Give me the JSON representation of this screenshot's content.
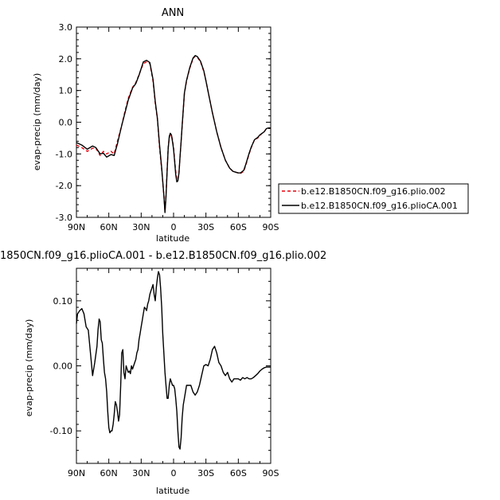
{
  "chart_data": [
    {
      "type": "line",
      "title": "ANN",
      "xlabel": "latitude",
      "ylabel": "evap-precip (mm/day)",
      "xlim": [
        90,
        -90
      ],
      "ylim": [
        -3.0,
        3.0
      ],
      "x_ticks": [
        90,
        60,
        30,
        0,
        -30,
        -60,
        -90
      ],
      "x_tick_labels": [
        "90N",
        "60N",
        "30N",
        "0",
        "30S",
        "60S",
        "90S"
      ],
      "y_ticks": [
        -3.0,
        -2.0,
        -1.0,
        0.0,
        1.0,
        2.0,
        3.0
      ],
      "y_tick_labels": [
        "-3.0",
        "-2.0",
        "-1.0",
        "0.0",
        "1.0",
        "2.0",
        "3.0"
      ],
      "legend_position": "right",
      "series": [
        {
          "name": "b.e12.B1850CN.f09_g16.plio.002",
          "color": "#e8000b",
          "dash": "dashed",
          "x": [
            90,
            85,
            80,
            75,
            72,
            68,
            65,
            62,
            58,
            55,
            52,
            48,
            45,
            42,
            38,
            35,
            32,
            28,
            25,
            22,
            19,
            17,
            15,
            13,
            11,
            9,
            8,
            7,
            6,
            5,
            4,
            3,
            2,
            1,
            0,
            -1,
            -2,
            -3,
            -4,
            -5,
            -6,
            -7,
            -8,
            -9,
            -10,
            -12,
            -15,
            -18,
            -20,
            -22,
            -25,
            -28,
            -30,
            -33,
            -36,
            -40,
            -44,
            -48,
            -52,
            -55,
            -58,
            -60,
            -62,
            -65,
            -67,
            -70,
            -72,
            -75,
            -78,
            -80,
            -82,
            -84,
            -86,
            -88,
            -90
          ],
          "y": [
            -0.72,
            -0.8,
            -0.92,
            -0.82,
            -0.82,
            -1.05,
            -0.92,
            -1.0,
            -0.92,
            -1.0,
            -0.6,
            -0.1,
            0.35,
            0.75,
            1.1,
            1.25,
            1.5,
            1.85,
            1.9,
            1.85,
            1.3,
            0.6,
            0.1,
            -0.8,
            -1.5,
            -2.3,
            -2.8,
            -2.3,
            -1.5,
            -0.8,
            -0.5,
            -0.4,
            -0.42,
            -0.55,
            -0.8,
            -1.2,
            -1.55,
            -1.8,
            -1.82,
            -1.6,
            -1.1,
            -0.6,
            -0.1,
            0.4,
            0.9,
            1.3,
            1.7,
            2.0,
            2.08,
            2.05,
            1.9,
            1.6,
            1.3,
            0.8,
            0.3,
            -0.3,
            -0.8,
            -1.2,
            -1.45,
            -1.55,
            -1.58,
            -1.6,
            -1.62,
            -1.55,
            -1.35,
            -1.0,
            -0.8,
            -0.55,
            -0.5,
            -0.42,
            -0.35,
            -0.3,
            -0.2,
            -0.18,
            -0.18
          ]
        },
        {
          "name": "b.e12.B1850CN.f09_g16.plioCA.001",
          "color": "#000000",
          "dash": "solid",
          "x": [
            90,
            85,
            80,
            75,
            72,
            68,
            65,
            62,
            58,
            55,
            52,
            48,
            45,
            42,
            38,
            35,
            32,
            28,
            25,
            22,
            19,
            17,
            15,
            13,
            11,
            9,
            8,
            7,
            6,
            5,
            4,
            3,
            2,
            1,
            0,
            -1,
            -2,
            -3,
            -4,
            -5,
            -6,
            -7,
            -8,
            -9,
            -10,
            -12,
            -15,
            -18,
            -20,
            -22,
            -25,
            -28,
            -30,
            -33,
            -36,
            -40,
            -44,
            -48,
            -52,
            -55,
            -58,
            -60,
            -62,
            -65,
            -67,
            -70,
            -72,
            -75,
            -78,
            -80,
            -82,
            -84,
            -86,
            -88,
            -90
          ],
          "y": [
            -0.64,
            -0.72,
            -0.85,
            -0.75,
            -0.8,
            -1.0,
            -0.98,
            -1.1,
            -1.02,
            -1.05,
            -0.68,
            -0.1,
            0.3,
            0.7,
            1.08,
            1.22,
            1.48,
            1.9,
            1.95,
            1.88,
            1.35,
            0.65,
            0.12,
            -0.72,
            -1.45,
            -2.3,
            -2.85,
            -2.35,
            -1.55,
            -0.85,
            -0.45,
            -0.35,
            -0.4,
            -0.6,
            -0.85,
            -1.25,
            -1.65,
            -1.88,
            -1.85,
            -1.6,
            -1.1,
            -0.6,
            -0.1,
            0.4,
            0.92,
            1.32,
            1.72,
            2.02,
            2.1,
            2.07,
            1.92,
            1.62,
            1.3,
            0.8,
            0.3,
            -0.3,
            -0.8,
            -1.2,
            -1.45,
            -1.55,
            -1.58,
            -1.6,
            -1.6,
            -1.52,
            -1.32,
            -0.98,
            -0.78,
            -0.55,
            -0.48,
            -0.4,
            -0.35,
            -0.3,
            -0.2,
            -0.18,
            -0.18
          ]
        }
      ]
    },
    {
      "type": "line",
      "title": "1850CN.f09_g16.plioCA.001 - b.e12.B1850CN.f09_g16.plio.002",
      "xlabel": "latitude",
      "ylabel": "evap-precip (mm/day)",
      "xlim": [
        90,
        -90
      ],
      "ylim": [
        -0.15,
        0.15
      ],
      "x_ticks": [
        90,
        60,
        30,
        0,
        -30,
        -60,
        -90
      ],
      "x_tick_labels": [
        "90N",
        "60N",
        "30N",
        "0",
        "30S",
        "60S",
        "90S"
      ],
      "y_ticks": [
        -0.1,
        0.0,
        0.1
      ],
      "y_tick_labels": [
        "-0.10",
        "0.00",
        "0.10"
      ],
      "series": [
        {
          "color": "#000000",
          "dash": "solid",
          "x": [
            90,
            89,
            87,
            85,
            83,
            81,
            79,
            77,
            75,
            73,
            71,
            70,
            69,
            68,
            67,
            66,
            65,
            64,
            63,
            62,
            61,
            60,
            59,
            58,
            57,
            56,
            55,
            54,
            53,
            52,
            51,
            50,
            49,
            48,
            47,
            46,
            45,
            44,
            43,
            42,
            41,
            40,
            39,
            38,
            37,
            36,
            35,
            34,
            33,
            32,
            31,
            30,
            29,
            28,
            27,
            26,
            25,
            24,
            23,
            22,
            21,
            20,
            19,
            18,
            17,
            16,
            15,
            14,
            13,
            12,
            11,
            10,
            9,
            8,
            7,
            6,
            5,
            4,
            3,
            2,
            1,
            0,
            -1,
            -2,
            -3,
            -4,
            -5,
            -6,
            -7,
            -8,
            -9,
            -10,
            -12,
            -14,
            -16,
            -18,
            -20,
            -22,
            -24,
            -26,
            -28,
            -30,
            -32,
            -34,
            -36,
            -38,
            -40,
            -42,
            -44,
            -46,
            -48,
            -50,
            -52,
            -54,
            -56,
            -58,
            -60,
            -62,
            -64,
            -66,
            -68,
            -70,
            -72,
            -74,
            -76,
            -78,
            -80,
            -82,
            -84,
            -86,
            -88,
            -90
          ],
          "y": [
            0.065,
            0.08,
            0.085,
            0.088,
            0.08,
            0.06,
            0.055,
            0.02,
            -0.015,
            0.005,
            0.03,
            0.055,
            0.072,
            0.068,
            0.04,
            0.035,
            0.01,
            -0.01,
            -0.02,
            -0.04,
            -0.07,
            -0.095,
            -0.103,
            -0.1,
            -0.1,
            -0.09,
            -0.075,
            -0.055,
            -0.06,
            -0.07,
            -0.085,
            -0.075,
            -0.03,
            0.02,
            0.025,
            -0.01,
            -0.02,
            0.0,
            -0.005,
            -0.01,
            -0.008,
            -0.012,
            0.0,
            -0.005,
            0.0,
            0.005,
            0.01,
            0.02,
            0.025,
            0.04,
            0.05,
            0.06,
            0.07,
            0.08,
            0.09,
            0.088,
            0.085,
            0.095,
            0.1,
            0.11,
            0.115,
            0.12,
            0.125,
            0.11,
            0.1,
            0.12,
            0.135,
            0.145,
            0.14,
            0.12,
            0.09,
            0.05,
            0.02,
            -0.01,
            -0.03,
            -0.05,
            -0.05,
            -0.03,
            -0.02,
            -0.025,
            -0.03,
            -0.03,
            -0.035,
            -0.05,
            -0.07,
            -0.1,
            -0.125,
            -0.128,
            -0.11,
            -0.08,
            -0.06,
            -0.05,
            -0.03,
            -0.03,
            -0.03,
            -0.04,
            -0.045,
            -0.04,
            -0.03,
            -0.015,
            0.0,
            0.002,
            0.0,
            0.01,
            0.025,
            0.03,
            0.02,
            0.005,
            0.0,
            -0.01,
            -0.015,
            -0.01,
            -0.02,
            -0.025,
            -0.02,
            -0.02,
            -0.02,
            -0.022,
            -0.018,
            -0.02,
            -0.018,
            -0.02,
            -0.02,
            -0.018,
            -0.015,
            -0.012,
            -0.008,
            -0.005,
            -0.003,
            -0.002,
            -0.002,
            -0.002
          ]
        }
      ]
    }
  ]
}
